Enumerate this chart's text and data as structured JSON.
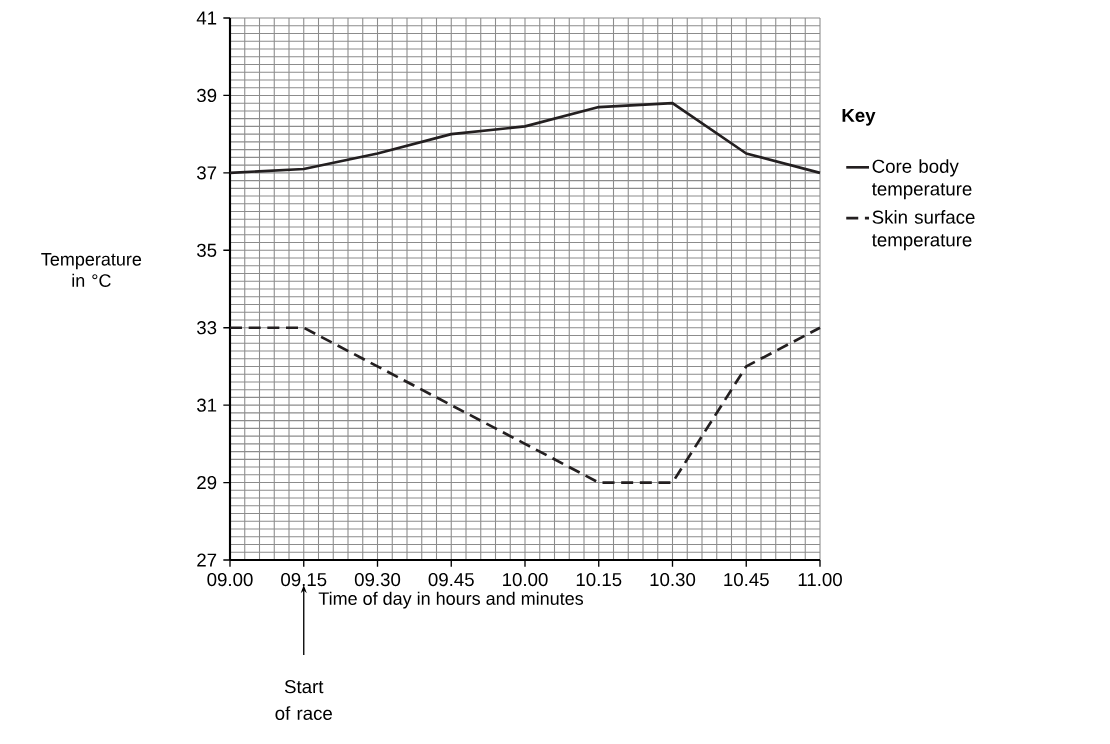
{
  "chart_data": {
    "type": "line",
    "xlabel": "Time of day in hours and minutes",
    "ylabel": "Temperature in °C",
    "legend_title": "Key",
    "categories": [
      "09.00",
      "09.15",
      "09.30",
      "09.45",
      "10.00",
      "10.15",
      "10.30",
      "10.45",
      "11.00"
    ],
    "series": [
      {
        "name": "Core body temperature",
        "color": "#231f20",
        "line_style": "solid",
        "values": [
          37.0,
          37.1,
          37.5,
          38.0,
          38.2,
          38.7,
          38.8,
          37.5,
          37.0
        ]
      },
      {
        "name": "Skin surface temperature",
        "color": "#231f20",
        "line_style": "dashed",
        "values": [
          33,
          33,
          32,
          31,
          30,
          29,
          29,
          32,
          33
        ]
      }
    ],
    "ylim": [
      27,
      41
    ],
    "yticks": [
      27,
      29,
      31,
      33,
      35,
      37,
      39,
      41
    ],
    "grid": true,
    "legend": "right",
    "marker": "none",
    "annotations": [
      "Start of race"
    ]
  }
}
